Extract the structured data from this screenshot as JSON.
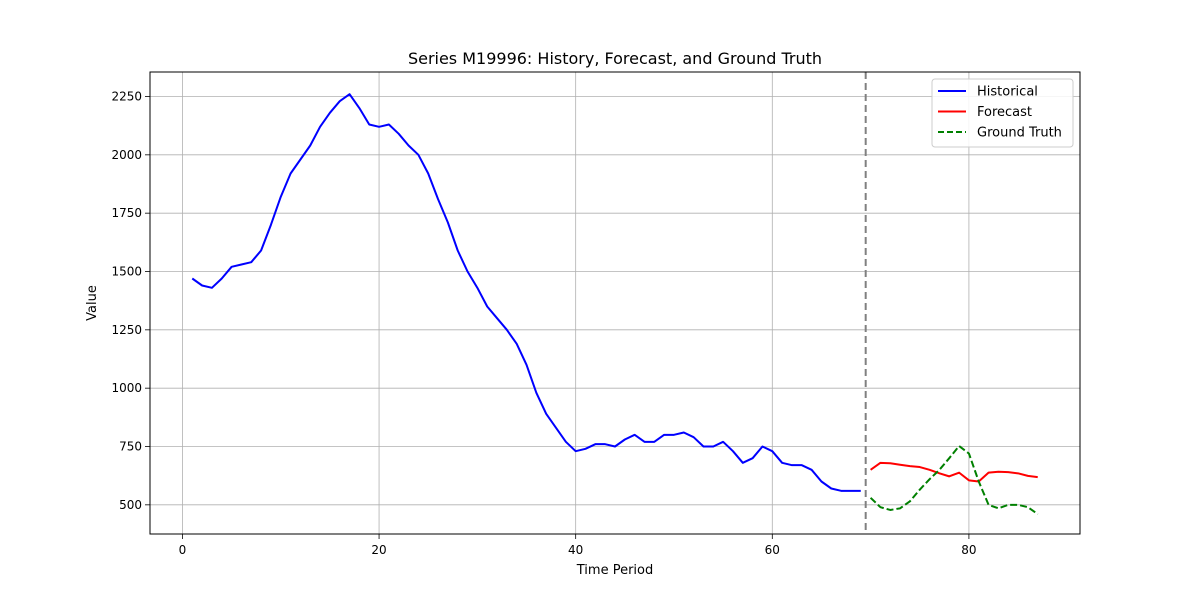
{
  "chart_data": {
    "type": "line",
    "title": "Series M19996: History, Forecast, and Ground Truth",
    "xlabel": "Time Period",
    "ylabel": "Value",
    "xlim": [
      -3.3,
      91.3
    ],
    "ylim": [
      375,
      2355
    ],
    "xticks": [
      0,
      20,
      40,
      60,
      80
    ],
    "yticks": [
      500,
      750,
      1000,
      1250,
      1500,
      1750,
      2000,
      2250
    ],
    "grid": true,
    "legend_position": "top-right",
    "split_x": 69.5,
    "series": [
      {
        "name": "Historical",
        "color": "#0000ff",
        "dash": "solid",
        "x": [
          1,
          2,
          3,
          4,
          5,
          6,
          7,
          8,
          9,
          10,
          11,
          12,
          13,
          14,
          15,
          16,
          17,
          18,
          19,
          20,
          21,
          22,
          23,
          24,
          25,
          26,
          27,
          28,
          29,
          30,
          31,
          32,
          33,
          34,
          35,
          36,
          37,
          38,
          39,
          40,
          41,
          42,
          43,
          44,
          45,
          46,
          47,
          48,
          49,
          50,
          51,
          52,
          53,
          54,
          55,
          56,
          57,
          58,
          59,
          60,
          61,
          62,
          63,
          64,
          65,
          66,
          67,
          68,
          69
        ],
        "y": [
          1470,
          1440,
          1430,
          1470,
          1520,
          1530,
          1540,
          1590,
          1700,
          1820,
          1920,
          1980,
          2040,
          2120,
          2180,
          2230,
          2260,
          2200,
          2130,
          2120,
          2130,
          2090,
          2040,
          2000,
          1920,
          1810,
          1710,
          1590,
          1500,
          1430,
          1350,
          1300,
          1250,
          1190,
          1100,
          980,
          890,
          830,
          770,
          730,
          740,
          760,
          760,
          750,
          780,
          800,
          770,
          770,
          800,
          800,
          810,
          790,
          750,
          750,
          770,
          730,
          680,
          700,
          750,
          730,
          680,
          670,
          670,
          650,
          600,
          570,
          560,
          560,
          560
        ]
      },
      {
        "name": "Forecast",
        "color": "#ff0000",
        "dash": "solid",
        "x": [
          70,
          71,
          72,
          73,
          74,
          75,
          76,
          77,
          78,
          79,
          80,
          81,
          82,
          83,
          84,
          85,
          86,
          87
        ],
        "y": [
          650,
          680,
          678,
          672,
          666,
          662,
          650,
          635,
          622,
          638,
          605,
          600,
          638,
          642,
          640,
          635,
          624,
          619
        ]
      },
      {
        "name": "Ground Truth",
        "color": "#008000",
        "dash": "dashed",
        "x": [
          70,
          71,
          72,
          73,
          74,
          75,
          76,
          77,
          78,
          79,
          80,
          81,
          82,
          83,
          84,
          85,
          86,
          87
        ],
        "y": [
          530,
          490,
          478,
          485,
          515,
          565,
          610,
          650,
          700,
          752,
          720,
          600,
          500,
          485,
          500,
          500,
          490,
          460
        ]
      }
    ]
  }
}
